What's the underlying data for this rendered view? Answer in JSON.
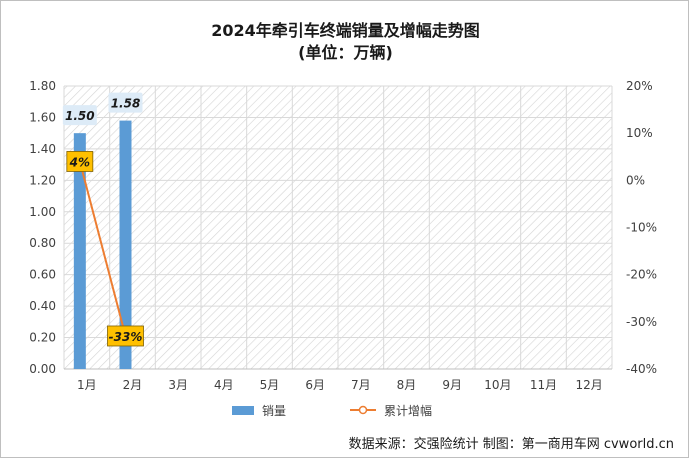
{
  "header": {
    "title": "2024年牵引车终端销量及增幅走势图",
    "subtitle": "(单位：万辆)"
  },
  "footer": {
    "source": "数据来源：交强险统计   制图：第一商用车网 cvworld.cn"
  },
  "colors": {
    "bar": "#5b9bd5",
    "line": "#ed7d31",
    "growth_label_bg": "#ffc000",
    "value_label_bg": "#ddebf7"
  },
  "chart_data": {
    "type": "bar",
    "categories": [
      "1月",
      "2月",
      "3月",
      "4月",
      "5月",
      "6月",
      "7月",
      "8月",
      "9月",
      "10月",
      "11月",
      "12月"
    ],
    "series": [
      {
        "name": "销量",
        "type": "bar",
        "axis": "left",
        "values": [
          1.5,
          1.58,
          null,
          null,
          null,
          null,
          null,
          null,
          null,
          null,
          null,
          null
        ],
        "data_labels": [
          "1.50",
          "1.58"
        ]
      },
      {
        "name": "累计增幅",
        "type": "line",
        "axis": "right",
        "values": [
          4,
          -33,
          null,
          null,
          null,
          null,
          null,
          null,
          null,
          null,
          null,
          null
        ],
        "data_labels": [
          "4%",
          "-33%"
        ]
      }
    ],
    "y_left": {
      "ylim": [
        0,
        1.8
      ],
      "ticks": [
        "0.00",
        "0.20",
        "0.40",
        "0.60",
        "0.80",
        "1.00",
        "1.20",
        "1.40",
        "1.60",
        "1.80"
      ]
    },
    "y_right": {
      "ylim": [
        -40,
        20
      ],
      "ticks": [
        "-40%",
        "-30%",
        "-20%",
        "-10%",
        "0%",
        "10%",
        "20%"
      ]
    },
    "grid": true,
    "legend": "bottom-center",
    "legend_entries": [
      "销量",
      "累计增幅"
    ]
  }
}
